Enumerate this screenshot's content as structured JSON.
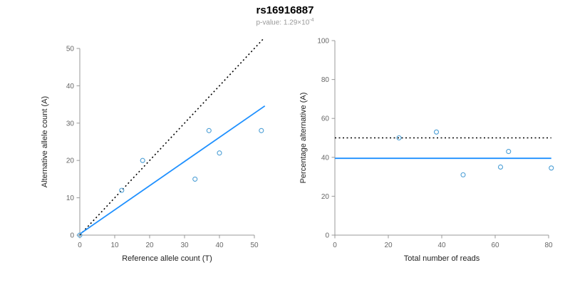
{
  "title": "rs16916887",
  "subtitle": {
    "prefix": "p-value: 1.29×10",
    "exponent": "-4"
  },
  "colors": {
    "point": "#4C9FD6",
    "regression_line": "#1E90FF",
    "dotted_line": "#000000",
    "axis": "#999999",
    "tick_text": "#666666",
    "label_text": "#222222"
  },
  "chart_data": [
    {
      "type": "scatter",
      "name": "allele-count-scatter",
      "xlabel": "Reference allele count (T)",
      "ylabel": "Alternative allele count (A)",
      "xlim": [
        0,
        50
      ],
      "ylim": [
        0,
        50
      ],
      "xticks": [
        0,
        10,
        20,
        30,
        40,
        50
      ],
      "yticks": [
        0,
        10,
        20,
        30,
        40,
        50
      ],
      "grid": false,
      "points": [
        [
          0,
          0
        ],
        [
          12,
          12
        ],
        [
          18,
          20
        ],
        [
          33,
          15
        ],
        [
          37,
          28
        ],
        [
          40,
          22
        ],
        [
          52,
          28
        ]
      ],
      "lines": [
        {
          "name": "identity-line",
          "style": "dotted",
          "color_key": "dotted_line",
          "points": [
            [
              0,
              0
            ],
            [
              52.5,
              52.5
            ]
          ]
        },
        {
          "name": "fit-line",
          "style": "solid",
          "color_key": "regression_line",
          "points": [
            [
              0,
              0.3
            ],
            [
              53,
              34.6
            ]
          ]
        }
      ]
    },
    {
      "type": "scatter",
      "name": "percentage-scatter",
      "xlabel": "Total number of reads",
      "ylabel": "Percentage alternative (A)",
      "xlim": [
        0,
        80
      ],
      "ylim": [
        0,
        100
      ],
      "xticks": [
        0,
        20,
        40,
        60,
        80
      ],
      "yticks": [
        0,
        20,
        40,
        60,
        80,
        100
      ],
      "grid": false,
      "points": [
        [
          24,
          50
        ],
        [
          38,
          53
        ],
        [
          48,
          31
        ],
        [
          62,
          35
        ],
        [
          65,
          43
        ],
        [
          81,
          34.5
        ]
      ],
      "lines": [
        {
          "name": "expected-50pct-line",
          "style": "dotted",
          "color_key": "dotted_line",
          "points": [
            [
              0,
              50
            ],
            [
              81,
              50
            ]
          ]
        },
        {
          "name": "mean-pct-line",
          "style": "solid",
          "color_key": "regression_line",
          "points": [
            [
              0,
              39.5
            ],
            [
              81,
              39.5
            ]
          ]
        }
      ]
    }
  ]
}
